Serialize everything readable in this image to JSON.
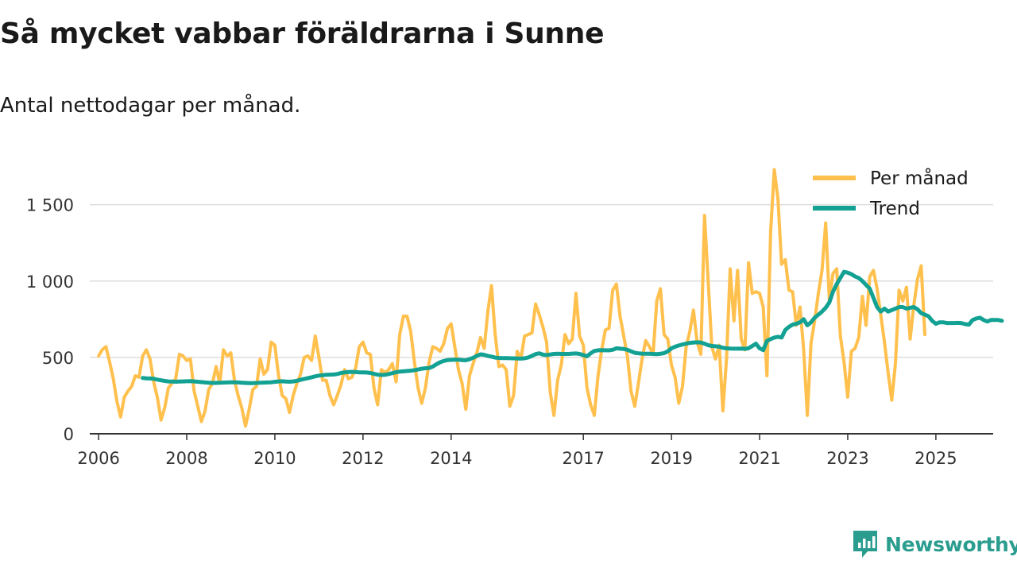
{
  "title": "Så mycket vabbar föräldrarna i Sunne",
  "subtitle": "Antal nettodagar per månad.",
  "brand": "Newsworthy",
  "colors": {
    "monthly": "#FFC04D",
    "trend": "#12A192",
    "grid": "#dddddd",
    "axis": "#333333",
    "brand": "#2a9d8f"
  },
  "chart_data": {
    "type": "line",
    "x_start": 2006.0,
    "x_step": 0.08333,
    "xlim": [
      2005.8,
      2026.3
    ],
    "ylim": [
      0,
      1800
    ],
    "yticks": [
      {
        "value": 0,
        "label": "0"
      },
      {
        "value": 500,
        "label": "500"
      },
      {
        "value": 1000,
        "label": "1 000"
      },
      {
        "value": 1500,
        "label": "1 500"
      }
    ],
    "xticks": [
      {
        "value": 2006,
        "label": "2006"
      },
      {
        "value": 2008,
        "label": "2008"
      },
      {
        "value": 2010,
        "label": "2010"
      },
      {
        "value": 2012,
        "label": "2012"
      },
      {
        "value": 2014,
        "label": "2014"
      },
      {
        "value": 2017,
        "label": "2017"
      },
      {
        "value": 2019,
        "label": "2019"
      },
      {
        "value": 2021,
        "label": "2021"
      },
      {
        "value": 2023,
        "label": "2023"
      },
      {
        "value": 2025,
        "label": "2025"
      }
    ],
    "legend_position": "top-right",
    "series": [
      {
        "name": "Per månad",
        "values": [
          510,
          550,
          570,
          470,
          360,
          210,
          110,
          240,
          280,
          310,
          380,
          370,
          510,
          550,
          490,
          340,
          240,
          90,
          170,
          300,
          330,
          360,
          520,
          510,
          480,
          490,
          280,
          180,
          80,
          150,
          290,
          330,
          440,
          330,
          550,
          510,
          530,
          350,
          250,
          170,
          50,
          160,
          290,
          310,
          490,
          390,
          420,
          600,
          580,
          380,
          250,
          230,
          140,
          250,
          330,
          390,
          500,
          510,
          480,
          640,
          500,
          350,
          350,
          250,
          190,
          250,
          320,
          420,
          360,
          370,
          430,
          570,
          600,
          530,
          520,
          300,
          190,
          420,
          400,
          420,
          460,
          340,
          650,
          770,
          770,
          670,
          470,
          300,
          200,
          300,
          470,
          570,
          560,
          540,
          590,
          690,
          720,
          570,
          420,
          330,
          160,
          380,
          460,
          530,
          630,
          560,
          800,
          970,
          650,
          440,
          450,
          420,
          180,
          250,
          540,
          490,
          640,
          650,
          660,
          850,
          780,
          700,
          600,
          270,
          120,
          350,
          450,
          650,
          590,
          620,
          920,
          640,
          580,
          300,
          190,
          120,
          380,
          550,
          680,
          690,
          940,
          980,
          770,
          640,
          510,
          280,
          180,
          330,
          490,
          610,
          570,
          520,
          870,
          950,
          650,
          620,
          450,
          370,
          200,
          310,
          570,
          670,
          810,
          600,
          520,
          1430,
          1000,
          570,
          490,
          580,
          150,
          490,
          1080,
          740,
          1070,
          620,
          550,
          1120,
          920,
          930,
          920,
          830,
          380,
          1320,
          1730,
          1540,
          1110,
          1140,
          940,
          930,
          710,
          830,
          550,
          120,
          590,
          740,
          920,
          1070,
          1380,
          880,
          1050,
          1080,
          640,
          470,
          240,
          540,
          560,
          630,
          900,
          710,
          1030,
          1070,
          950,
          780,
          600,
          400,
          220,
          460,
          940,
          870,
          960,
          620,
          840,
          1010,
          1100,
          650
        ]
      },
      {
        "name": "Trend",
        "start_index": 12,
        "values": [
          365,
          363,
          362,
          360,
          355,
          350,
          346,
          343,
          342,
          341,
          342,
          343,
          344,
          345,
          343,
          341,
          338,
          336,
          334,
          333,
          333,
          334,
          335,
          336,
          337,
          337,
          336,
          334,
          333,
          332,
          332,
          333,
          334,
          335,
          336,
          337,
          340,
          343,
          344,
          342,
          341,
          343,
          347,
          353,
          359,
          364,
          370,
          376,
          381,
          384,
          386,
          387,
          388,
          391,
          398,
          402,
          404,
          405,
          404,
          402,
          402,
          401,
          398,
          392,
          387,
          385,
          386,
          391,
          397,
          403,
          407,
          409,
          411,
          413,
          416,
          421,
          426,
          429,
          431,
          440,
          455,
          468,
          477,
          482,
          484,
          485,
          485,
          483,
          481,
          488,
          498,
          510,
          520,
          517,
          510,
          505,
          499,
          497,
          496,
          496,
          495,
          494,
          493,
          492,
          494,
          500,
          510,
          522,
          527,
          518,
          515,
          519,
          523,
          524,
          523,
          523,
          523,
          525,
          526,
          523,
          515,
          507,
          527,
          542,
          547,
          548,
          547,
          546,
          550,
          560,
          557,
          555,
          550,
          540,
          530,
          527,
          525,
          524,
          524,
          523,
          522,
          524,
          528,
          540,
          560,
          570,
          578,
          585,
          590,
          595,
          598,
          599,
          598,
          590,
          580,
          575,
          573,
          570,
          563,
          560,
          558,
          557,
          557,
          558,
          556,
          560,
          575,
          590,
          560,
          548,
          608,
          620,
          630,
          635,
          630,
          680,
          700,
          715,
          720,
          730,
          750,
          710,
          730,
          760,
          780,
          800,
          825,
          860,
          930,
          980,
          1020,
          1060,
          1055,
          1045,
          1030,
          1020,
          1000,
          975,
          950,
          890,
          830,
          800,
          820,
          800,
          810,
          820,
          830,
          830,
          820,
          825,
          830,
          815,
          790,
          780,
          770,
          740,
          720,
          730,
          730,
          725,
          725,
          725,
          726,
          724,
          718,
          715,
          745,
          755,
          760,
          745,
          735,
          745,
          745,
          745,
          740
        ]
      }
    ]
  }
}
